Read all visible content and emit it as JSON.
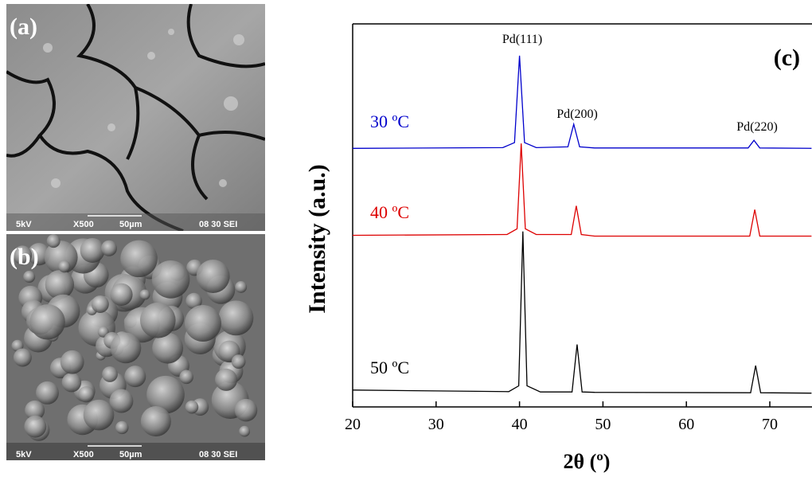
{
  "panels": [
    {
      "label": "(a)",
      "info": [
        "5kV",
        "X500",
        "50µm",
        "08 30 SEI"
      ]
    },
    {
      "label": "(b)",
      "info": [
        "5kV",
        "X500",
        "50µm",
        "08 30 SEI"
      ]
    }
  ],
  "chart_data": {
    "type": "line",
    "panel_label": "(c)",
    "x_label": "2θ (º)",
    "y_label": "Intensity (a.u.)",
    "xlim": [
      20,
      75
    ],
    "xticks": [
      20,
      30,
      40,
      50,
      60,
      70
    ],
    "ylim": [
      0,
      100
    ],
    "annotations": [
      "Pd(111)",
      "Pd(200)",
      "Pd(220)"
    ],
    "series": [
      {
        "name": "30 ºC",
        "color": "#0000cc",
        "x": [
          20,
          38,
          39.4,
          40.0,
          40.6,
          42,
          45.8,
          46.5,
          47.2,
          49,
          67.4,
          68.1,
          68.8,
          75
        ],
        "values": [
          67.5,
          67.7,
          69,
          91.7,
          69,
          67.7,
          67.9,
          73.8,
          67.9,
          67.6,
          67.6,
          69.6,
          67.6,
          67.5
        ]
      },
      {
        "name": "40 ºC",
        "color": "#dd0000",
        "x": [
          20,
          38.5,
          39.7,
          40.2,
          40.7,
          42,
          46.2,
          46.8,
          47.4,
          49,
          67.6,
          68.2,
          68.8,
          75
        ],
        "values": [
          44.8,
          45.0,
          46.5,
          68.8,
          46.5,
          45.0,
          45.0,
          52.5,
          45.0,
          44.6,
          44.6,
          51.5,
          44.6,
          44.6
        ]
      },
      {
        "name": "50 ºC",
        "color": "#000000",
        "x": [
          20,
          38.7,
          39.9,
          40.4,
          40.9,
          42.5,
          46.3,
          46.9,
          47.5,
          49,
          67.7,
          68.3,
          68.9,
          75
        ],
        "values": [
          4.4,
          4.0,
          5.5,
          45.8,
          5.5,
          3.9,
          3.9,
          16.3,
          3.9,
          3.8,
          3.7,
          10.8,
          3.7,
          3.6
        ]
      }
    ]
  }
}
